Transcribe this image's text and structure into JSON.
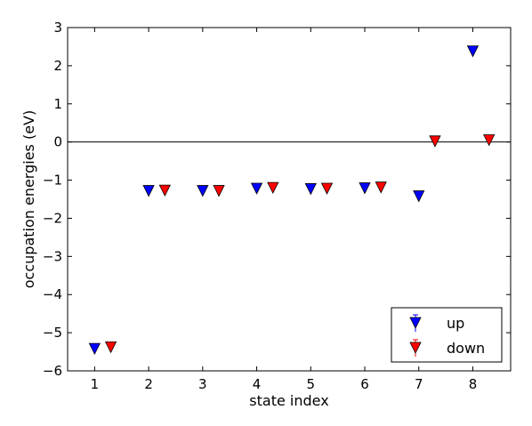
{
  "chart_data": {
    "type": "scatter",
    "xlabel": "state index",
    "ylabel": "occupation energies (eV)",
    "xlim": [
      0.5,
      8.7
    ],
    "ylim": [
      -6,
      3
    ],
    "xticks": [
      1,
      2,
      3,
      4,
      5,
      6,
      7,
      8
    ],
    "yticks": [
      -6,
      -5,
      -4,
      -3,
      -2,
      -1,
      0,
      1,
      2,
      3
    ],
    "xtick_labels": [
      "1",
      "2",
      "3",
      "4",
      "5",
      "6",
      "7",
      "8"
    ],
    "ytick_labels": [
      "−6",
      "−5",
      "−4",
      "−3",
      "−2",
      "−1",
      "0",
      "1",
      "2",
      "3"
    ],
    "reference_line_y": 0,
    "grid": false,
    "legend_position": "bottom-right",
    "marker": "triangle-down",
    "series": [
      {
        "name": "up",
        "color": "#0000ff",
        "x": [
          1,
          2,
          3,
          4,
          5,
          6,
          7,
          8
        ],
        "y": [
          -5.42,
          -1.28,
          -1.28,
          -1.22,
          -1.23,
          -1.21,
          -1.42,
          2.38
        ]
      },
      {
        "name": "down",
        "color": "#ff0000",
        "x": [
          1.3,
          2.3,
          3.3,
          4.3,
          5.3,
          6.3,
          7.3,
          8.3
        ],
        "y": [
          -5.38,
          -1.27,
          -1.28,
          -1.2,
          -1.22,
          -1.19,
          0.02,
          0.05
        ]
      }
    ]
  }
}
